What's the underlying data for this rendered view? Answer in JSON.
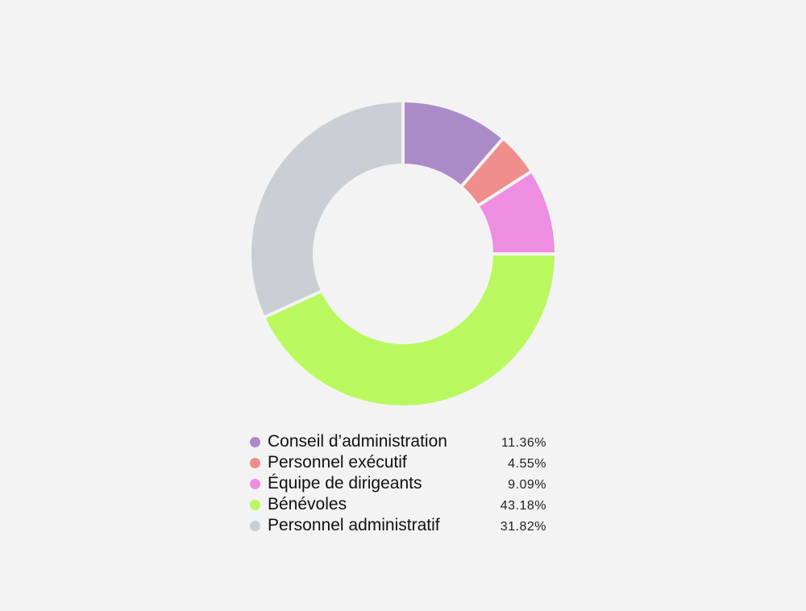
{
  "chart_data": {
    "type": "pie",
    "donut": true,
    "categories": [
      "Conseil d’administration",
      "Personnel exécutif",
      "Équipe de dirigeants",
      "Bénévoles",
      "Personnel administratif"
    ],
    "values": [
      11.36,
      4.55,
      9.09,
      43.18,
      31.82
    ],
    "value_labels": [
      "11.36%",
      "4.55%",
      "9.09%",
      "43.18%",
      "31.82%"
    ],
    "colors": [
      "#ab8bc7",
      "#ef8e8a",
      "#ee8ee0",
      "#b9f95f",
      "#c9cfd4"
    ],
    "legend_position": "bottom"
  }
}
